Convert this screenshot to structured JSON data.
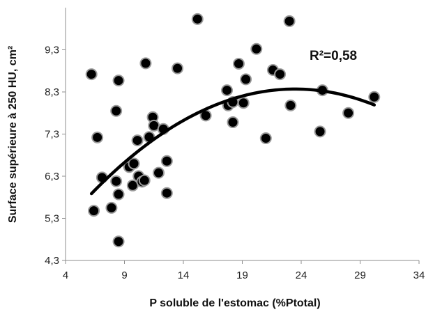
{
  "chart_data": {
    "type": "scatter",
    "xlabel": "P soluble de l'estomac (%Ptotal)",
    "ylabel": "Surface supérieure à 250 HU, cm²",
    "xlim": [
      4,
      34
    ],
    "ylim": [
      4.3,
      10.3
    ],
    "xticks": [
      4,
      9,
      14,
      19,
      24,
      29,
      34
    ],
    "yticks": [
      4.3,
      5.3,
      6.3,
      7.3,
      8.3,
      9.3
    ],
    "xtick_labels": [
      "4",
      "9",
      "14",
      "19",
      "24",
      "29",
      "34"
    ],
    "ytick_labels": [
      "4,3",
      "5,3",
      "6,3",
      "7,3",
      "8,3",
      "9,3"
    ],
    "grid": false,
    "annotation": "R²=0,58",
    "marker_color": "#000000",
    "marker_edge_color": "#9a9a9a",
    "trend_color": "#000000",
    "points": [
      {
        "x": 6.2,
        "y": 8.72
      },
      {
        "x": 6.4,
        "y": 5.48
      },
      {
        "x": 6.7,
        "y": 7.22
      },
      {
        "x": 7.1,
        "y": 6.27
      },
      {
        "x": 7.9,
        "y": 5.55
      },
      {
        "x": 8.3,
        "y": 6.18
      },
      {
        "x": 8.3,
        "y": 7.85
      },
      {
        "x": 8.5,
        "y": 8.57
      },
      {
        "x": 8.5,
        "y": 5.87
      },
      {
        "x": 8.5,
        "y": 4.75
      },
      {
        "x": 9.4,
        "y": 6.52
      },
      {
        "x": 9.7,
        "y": 6.08
      },
      {
        "x": 9.8,
        "y": 6.6
      },
      {
        "x": 10.1,
        "y": 7.15
      },
      {
        "x": 10.2,
        "y": 6.3
      },
      {
        "x": 10.5,
        "y": 6.17
      },
      {
        "x": 10.7,
        "y": 6.2
      },
      {
        "x": 10.8,
        "y": 8.98
      },
      {
        "x": 11.1,
        "y": 7.23
      },
      {
        "x": 11.4,
        "y": 7.7
      },
      {
        "x": 11.5,
        "y": 7.5
      },
      {
        "x": 11.9,
        "y": 6.38
      },
      {
        "x": 12.3,
        "y": 7.42
      },
      {
        "x": 12.6,
        "y": 6.66
      },
      {
        "x": 12.6,
        "y": 5.9
      },
      {
        "x": 13.5,
        "y": 8.86
      },
      {
        "x": 15.2,
        "y": 10.03
      },
      {
        "x": 15.9,
        "y": 7.74
      },
      {
        "x": 17.7,
        "y": 8.34
      },
      {
        "x": 17.8,
        "y": 7.98
      },
      {
        "x": 18.2,
        "y": 8.06
      },
      {
        "x": 18.2,
        "y": 7.58
      },
      {
        "x": 18.7,
        "y": 8.97
      },
      {
        "x": 19.1,
        "y": 8.04
      },
      {
        "x": 19.3,
        "y": 8.6
      },
      {
        "x": 20.2,
        "y": 9.32
      },
      {
        "x": 21.0,
        "y": 7.2
      },
      {
        "x": 21.6,
        "y": 8.82
      },
      {
        "x": 22.2,
        "y": 8.72
      },
      {
        "x": 23.0,
        "y": 9.98
      },
      {
        "x": 23.1,
        "y": 7.98
      },
      {
        "x": 25.6,
        "y": 7.36
      },
      {
        "x": 25.8,
        "y": 8.34
      },
      {
        "x": 28.0,
        "y": 7.8
      },
      {
        "x": 30.2,
        "y": 8.18
      }
    ],
    "trendline": {
      "type": "polynomial",
      "order": 2,
      "x_range": [
        6.2,
        30.2
      ],
      "coefficients": {
        "a": -0.00832,
        "b": 0.3906,
        "c": 3.784
      }
    }
  }
}
